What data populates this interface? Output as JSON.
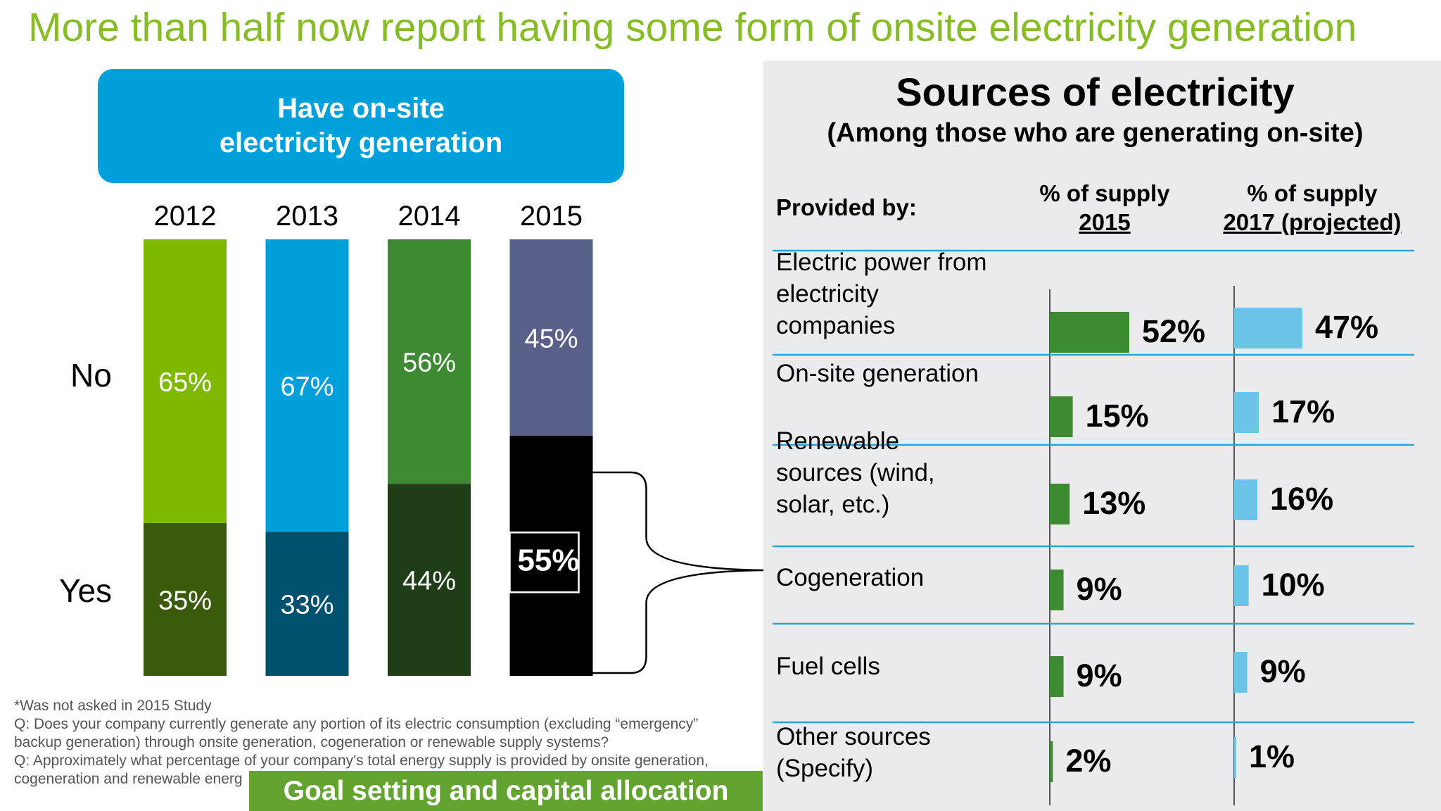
{
  "headline": "More than half now report having some form of onsite electricity generation",
  "left": {
    "banner_line1": "Have on-site",
    "banner_line2": "electricity generation",
    "row_no": "No",
    "row_yes": "Yes"
  },
  "footnote": {
    "line1": "*Was not asked in 2015 Study",
    "line2": "Q: Does your company currently generate any portion of its electric consumption (excluding “emergency”",
    "line3": "backup generation) through onsite generation, cogeneration or renewable supply systems?",
    "line4": "Q: Approximately what percentage of your company's total energy supply is provided by onsite generation,",
    "line5": "cogeneration and renewable energ"
  },
  "goal_box": "Goal setting and capital allocation",
  "panel": {
    "title": "Sources of electricity",
    "subtitle": "(Among those who are generating on-site)",
    "provided_by": "Provided by:",
    "col1_line1": "% of supply",
    "col1_line2": "2015",
    "col2_line1": "% of supply",
    "col2_line2": "2017 (projected)"
  },
  "chart_data": [
    {
      "type": "bar",
      "stacked": true,
      "categories": [
        "2012",
        "2013",
        "2014",
        "2015"
      ],
      "series": [
        {
          "name": "Yes",
          "values": [
            35,
            33,
            44,
            55
          ],
          "labels": [
            "35%",
            "33%",
            "44%",
            "55%"
          ]
        },
        {
          "name": "No",
          "values": [
            65,
            67,
            56,
            45
          ],
          "labels": [
            "65%",
            "67%",
            "56%",
            "45%"
          ]
        }
      ],
      "colors": {
        "no": [
          "#7fb800",
          "#00a0dc",
          "#3d8a33",
          "#59608a"
        ],
        "yes": [
          "#3b5a0a",
          "#00506e",
          "#1f3e18",
          "#000000"
        ]
      },
      "ylim": [
        0,
        100
      ]
    },
    {
      "type": "bar",
      "orientation": "horizontal",
      "categories": [
        [
          "Electric power from",
          "electricity",
          "companies"
        ],
        [
          "On-site generation"
        ],
        [
          "Renewable",
          "sources (wind,",
          "solar, etc.)"
        ],
        [
          "Cogeneration"
        ],
        [
          "Fuel cells"
        ],
        [
          "Other sources",
          "(Specify)"
        ]
      ],
      "series": [
        {
          "name": "% of supply 2015",
          "values": [
            52,
            15,
            13,
            9,
            9,
            2
          ],
          "labels": [
            "52%",
            "15%",
            "13%",
            "9%",
            "9%",
            "2%"
          ],
          "color": "#3d8a33"
        },
        {
          "name": "% of supply 2017 (projected)",
          "values": [
            47,
            17,
            16,
            10,
            9,
            1
          ],
          "labels": [
            "47%",
            "17%",
            "16%",
            "10%",
            "9%",
            "1%"
          ],
          "color": "#6cc4e8"
        }
      ]
    }
  ]
}
